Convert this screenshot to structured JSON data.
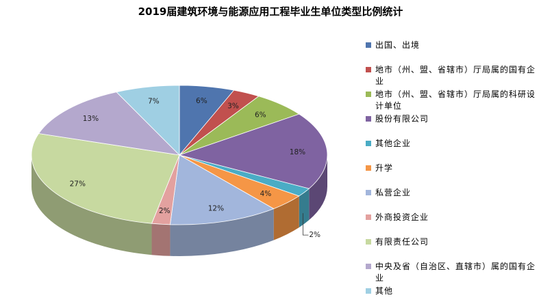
{
  "chart_data": {
    "type": "pie",
    "title": "2019届建筑环境与能源应用工程毕业生单位类型比例统计",
    "legend_position": "right",
    "slices": [
      {
        "name": "出国、出境",
        "value": 6,
        "label": "6%",
        "color": "#4F75AE"
      },
      {
        "name": "地市（州、盟、省辖市）厅局属的国有企业",
        "value": 3,
        "label": "3%",
        "color": "#C1504E"
      },
      {
        "name": "地市（州、盟、省辖市）厅局属的科研设计单位",
        "value": 6,
        "label": "6%",
        "color": "#9BBA58"
      },
      {
        "name": "股份有限公司",
        "value": 18,
        "label": "18%",
        "color": "#7F63A1"
      },
      {
        "name": "其他企业",
        "value": 2,
        "label": "",
        "color": "#4AACC5"
      },
      {
        "name": "升学",
        "value": 4,
        "label": "4%",
        "color": "#F59646"
      },
      {
        "name": "私营企业",
        "value": 12,
        "label": "12%",
        "color": "#A2B6DC"
      },
      {
        "name": "外商投资企业",
        "value": 2,
        "label": "2%",
        "color": "#E3A19F"
      },
      {
        "name": "有限责任公司",
        "value": 27,
        "label": "27%",
        "color": "#C7D9A0"
      },
      {
        "name": "中央及省（自治区、直辖市）属的国有企业",
        "value": 13,
        "label": "13%",
        "color": "#B4A8CD"
      },
      {
        "name": "其他",
        "value": 7,
        "label": "7%",
        "color": "#9FCFE3"
      }
    ],
    "callout_label": "2%"
  }
}
